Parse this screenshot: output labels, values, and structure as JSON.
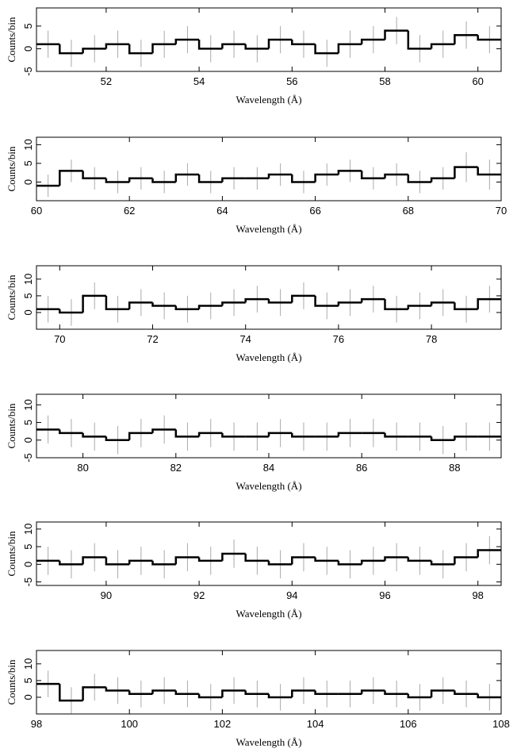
{
  "chart_data": [
    {
      "type": "histogram",
      "x_label": "Wavelength (Å)",
      "y_label": "Counts/bin",
      "color": "#000000",
      "error_color": "#aaaaaa",
      "bins": [
        50.5,
        51,
        51.5,
        52,
        52.5,
        53,
        53.5,
        54,
        54.5,
        55,
        55.5,
        56,
        56.5,
        57,
        57.5,
        58,
        58.5,
        59,
        59.5,
        60,
        60.5
      ],
      "values": [
        1,
        -1,
        0,
        1,
        -1,
        1,
        2,
        0,
        1,
        0,
        2,
        1,
        -1,
        1,
        2,
        4,
        0,
        1,
        3,
        2
      ],
      "errors": [
        3,
        3,
        3,
        3,
        3,
        3,
        3,
        3,
        3,
        3,
        3,
        3,
        3,
        3,
        3,
        3,
        3,
        3,
        3,
        3
      ],
      "xlim": [
        50.5,
        60.5
      ],
      "ylim": [
        -5,
        9
      ],
      "xticks": [
        52,
        54,
        56,
        58,
        60
      ],
      "yticks": [
        -5,
        0,
        5
      ]
    },
    {
      "type": "histogram",
      "x_label": "Wavelength (Å)",
      "y_label": "Counts/bin",
      "color": "#000000",
      "error_color": "#aaaaaa",
      "bins": [
        60,
        60.5,
        61,
        61.5,
        62,
        62.5,
        63,
        63.5,
        64,
        64.5,
        65,
        65.5,
        66,
        66.5,
        67,
        67.5,
        68,
        68.5,
        69,
        69.5,
        70
      ],
      "values": [
        -1,
        3,
        1,
        0,
        1,
        0,
        2,
        0,
        1,
        1,
        2,
        0,
        2,
        3,
        1,
        2,
        0,
        1,
        4,
        2
      ],
      "errors": [
        3,
        3,
        3,
        3,
        3,
        3,
        3,
        3,
        3,
        3,
        3,
        3,
        3,
        3,
        3,
        3,
        3,
        3,
        4,
        4
      ],
      "xlim": [
        60,
        70
      ],
      "ylim": [
        -5,
        12
      ],
      "xticks": [
        60,
        62,
        64,
        66,
        68,
        70
      ],
      "yticks": [
        0,
        5,
        10
      ]
    },
    {
      "type": "histogram",
      "x_label": "Wavelength (Å)",
      "y_label": "Counts/bin",
      "color": "#000000",
      "error_color": "#aaaaaa",
      "bins": [
        69.5,
        70,
        70.5,
        71,
        71.5,
        72,
        72.5,
        73,
        73.5,
        74,
        74.5,
        75,
        75.5,
        76,
        76.5,
        77,
        77.5,
        78,
        78.5,
        79,
        79.5
      ],
      "values": [
        1,
        0,
        5,
        1,
        3,
        2,
        1,
        2,
        3,
        4,
        3,
        5,
        2,
        3,
        4,
        1,
        2,
        3,
        1,
        4
      ],
      "errors": [
        4,
        4,
        4,
        4,
        4,
        4,
        4,
        4,
        4,
        4,
        4,
        4,
        4,
        4,
        4,
        4,
        4,
        4,
        4,
        4
      ],
      "xlim": [
        69.5,
        79.5
      ],
      "ylim": [
        -5,
        14
      ],
      "xticks": [
        70,
        72,
        74,
        76,
        78
      ],
      "yticks": [
        0,
        5,
        10
      ]
    },
    {
      "type": "histogram",
      "x_label": "Wavelength (Å)",
      "y_label": "Counts/bin",
      "color": "#000000",
      "error_color": "#aaaaaa",
      "bins": [
        79,
        79.5,
        80,
        80.5,
        81,
        81.5,
        82,
        82.5,
        83,
        83.5,
        84,
        84.5,
        85,
        85.5,
        86,
        86.5,
        87,
        87.5,
        88,
        88.5,
        89
      ],
      "values": [
        3,
        2,
        1,
        0,
        2,
        3,
        1,
        2,
        1,
        1,
        2,
        1,
        1,
        2,
        2,
        1,
        1,
        0,
        1,
        1
      ],
      "errors": [
        4,
        4,
        4,
        4,
        4,
        4,
        4,
        4,
        4,
        4,
        4,
        4,
        4,
        4,
        4,
        4,
        4,
        4,
        4,
        4
      ],
      "xlim": [
        79,
        89
      ],
      "ylim": [
        -5,
        13
      ],
      "xticks": [
        80,
        82,
        84,
        86,
        88
      ],
      "yticks": [
        -5,
        0,
        5,
        10
      ]
    },
    {
      "type": "histogram",
      "x_label": "Wavelength (Å)",
      "y_label": "Counts/bin",
      "color": "#000000",
      "error_color": "#aaaaaa",
      "bins": [
        88.5,
        89,
        89.5,
        90,
        90.5,
        91,
        91.5,
        92,
        92.5,
        93,
        93.5,
        94,
        94.5,
        95,
        95.5,
        96,
        96.5,
        97,
        97.5,
        98,
        98.5
      ],
      "values": [
        1,
        0,
        2,
        0,
        1,
        0,
        2,
        1,
        3,
        1,
        0,
        2,
        1,
        0,
        1,
        2,
        1,
        0,
        2,
        4
      ],
      "errors": [
        4,
        4,
        4,
        4,
        4,
        4,
        4,
        4,
        4,
        4,
        4,
        4,
        4,
        4,
        4,
        4,
        4,
        4,
        4,
        4
      ],
      "xlim": [
        88.5,
        98.5
      ],
      "ylim": [
        -6,
        12
      ],
      "xticks": [
        90,
        92,
        94,
        96,
        98
      ],
      "yticks": [
        -5,
        0,
        5,
        10
      ]
    },
    {
      "type": "histogram",
      "x_label": "Wavelength (Å)",
      "y_label": "Counts/bin",
      "color": "#000000",
      "error_color": "#aaaaaa",
      "bins": [
        98,
        98.5,
        99,
        99.5,
        100,
        100.5,
        101,
        101.5,
        102,
        102.5,
        103,
        103.5,
        104,
        104.5,
        105,
        105.5,
        106,
        106.5,
        107,
        107.5,
        108
      ],
      "values": [
        4,
        -1,
        3,
        2,
        1,
        2,
        1,
        0,
        2,
        1,
        0,
        2,
        1,
        1,
        2,
        1,
        0,
        2,
        1,
        0
      ],
      "errors": [
        4,
        4,
        4,
        4,
        4,
        4,
        4,
        4,
        4,
        4,
        4,
        4,
        4,
        4,
        4,
        4,
        4,
        4,
        4,
        4
      ],
      "xlim": [
        98,
        108
      ],
      "ylim": [
        -5,
        14
      ],
      "xticks": [
        98,
        100,
        102,
        104,
        106,
        108
      ],
      "yticks": [
        0,
        5,
        10
      ]
    }
  ]
}
